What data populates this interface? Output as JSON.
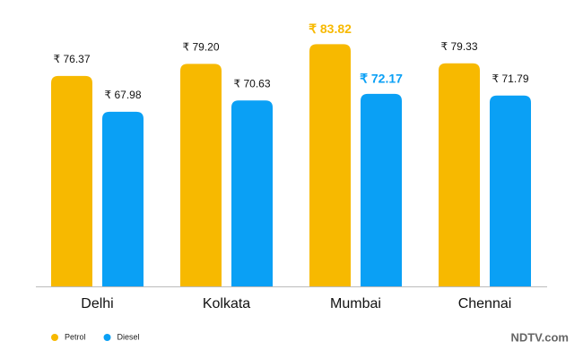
{
  "chart_data": {
    "type": "bar",
    "categories": [
      "Delhi",
      "Kolkata",
      "Mumbai",
      "Chennai"
    ],
    "series": [
      {
        "name": "Petrol",
        "color": "#f7b900",
        "values": [
          76.37,
          79.2,
          83.82,
          79.33
        ],
        "value_labels": [
          "₹ 76.37",
          "₹ 79.20",
          "₹ 83.82",
          "₹ 79.33"
        ]
      },
      {
        "name": "Diesel",
        "color": "#0aa0f5",
        "values": [
          67.98,
          70.63,
          72.17,
          71.79
        ],
        "value_labels": [
          "₹ 67.98",
          "₹ 70.63",
          "₹ 72.17",
          "₹ 71.79"
        ]
      }
    ],
    "ylim": [
      27,
      90
    ],
    "highlight_index": 2,
    "legend": "bottom-left",
    "source": "NDTV.com"
  }
}
